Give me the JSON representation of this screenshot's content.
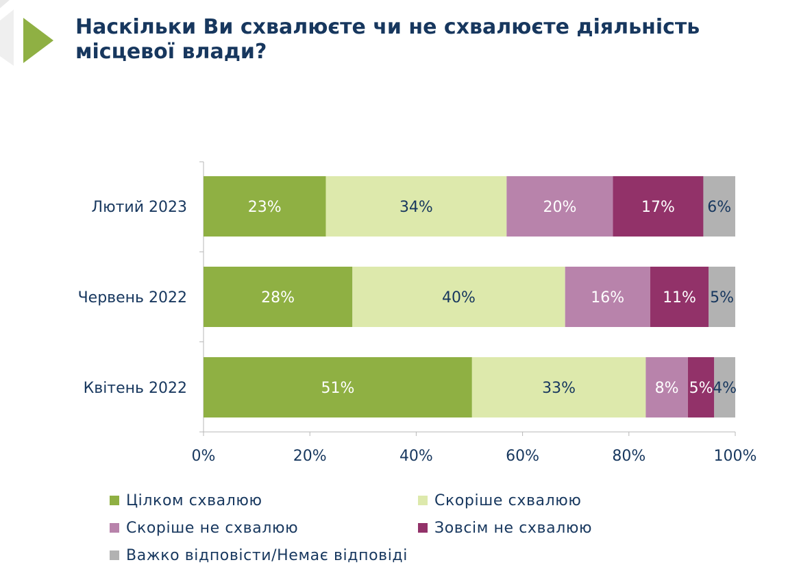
{
  "header": {
    "title_line1": "Наскільки Ви схвалюєте чи не схвалюєте діяльність",
    "title_line2": "місцевої влади?"
  },
  "colors": {
    "title": "#17375e",
    "text": "#17375e",
    "accent_arrow": "#8fb043",
    "axis": "#b7b7b7"
  },
  "chart_data": {
    "type": "bar",
    "orientation": "horizontal",
    "stacked": true,
    "categories": [
      "Лютий 2023",
      "Червень 2022",
      "Квітень 2022"
    ],
    "xlim": [
      0,
      100
    ],
    "x_ticks": [
      "0%",
      "20%",
      "40%",
      "60%",
      "80%",
      "100%"
    ],
    "grid": false,
    "legend_position": "bottom",
    "series": [
      {
        "name": "Цілком схвалюю",
        "color": "#8fb043",
        "label_color": "#ffffff",
        "values": [
          23,
          28,
          51
        ],
        "labels": [
          "23%",
          "28%",
          "51%"
        ]
      },
      {
        "name": "Скоріше схвалюю",
        "color": "#dde9ac",
        "label_color": "#17375e",
        "values": [
          34,
          40,
          33
        ],
        "labels": [
          "34%",
          "40%",
          "33%"
        ]
      },
      {
        "name": "Скоріше не схвалюю",
        "color": "#b883ab",
        "label_color": "#ffffff",
        "values": [
          20,
          16,
          8
        ],
        "labels": [
          "20%",
          "16%",
          "8%"
        ]
      },
      {
        "name": "Зовсім не схвалюю",
        "color": "#923269",
        "label_color": "#ffffff",
        "values": [
          17,
          11,
          5
        ],
        "labels": [
          "17%",
          "11%",
          "5%"
        ]
      },
      {
        "name": "Важко відповісти/Немає відповіді",
        "color": "#b2b2b2",
        "label_color": "#17375e",
        "values": [
          6,
          5,
          4
        ],
        "labels": [
          "6%",
          "5%",
          "4%"
        ]
      }
    ]
  }
}
